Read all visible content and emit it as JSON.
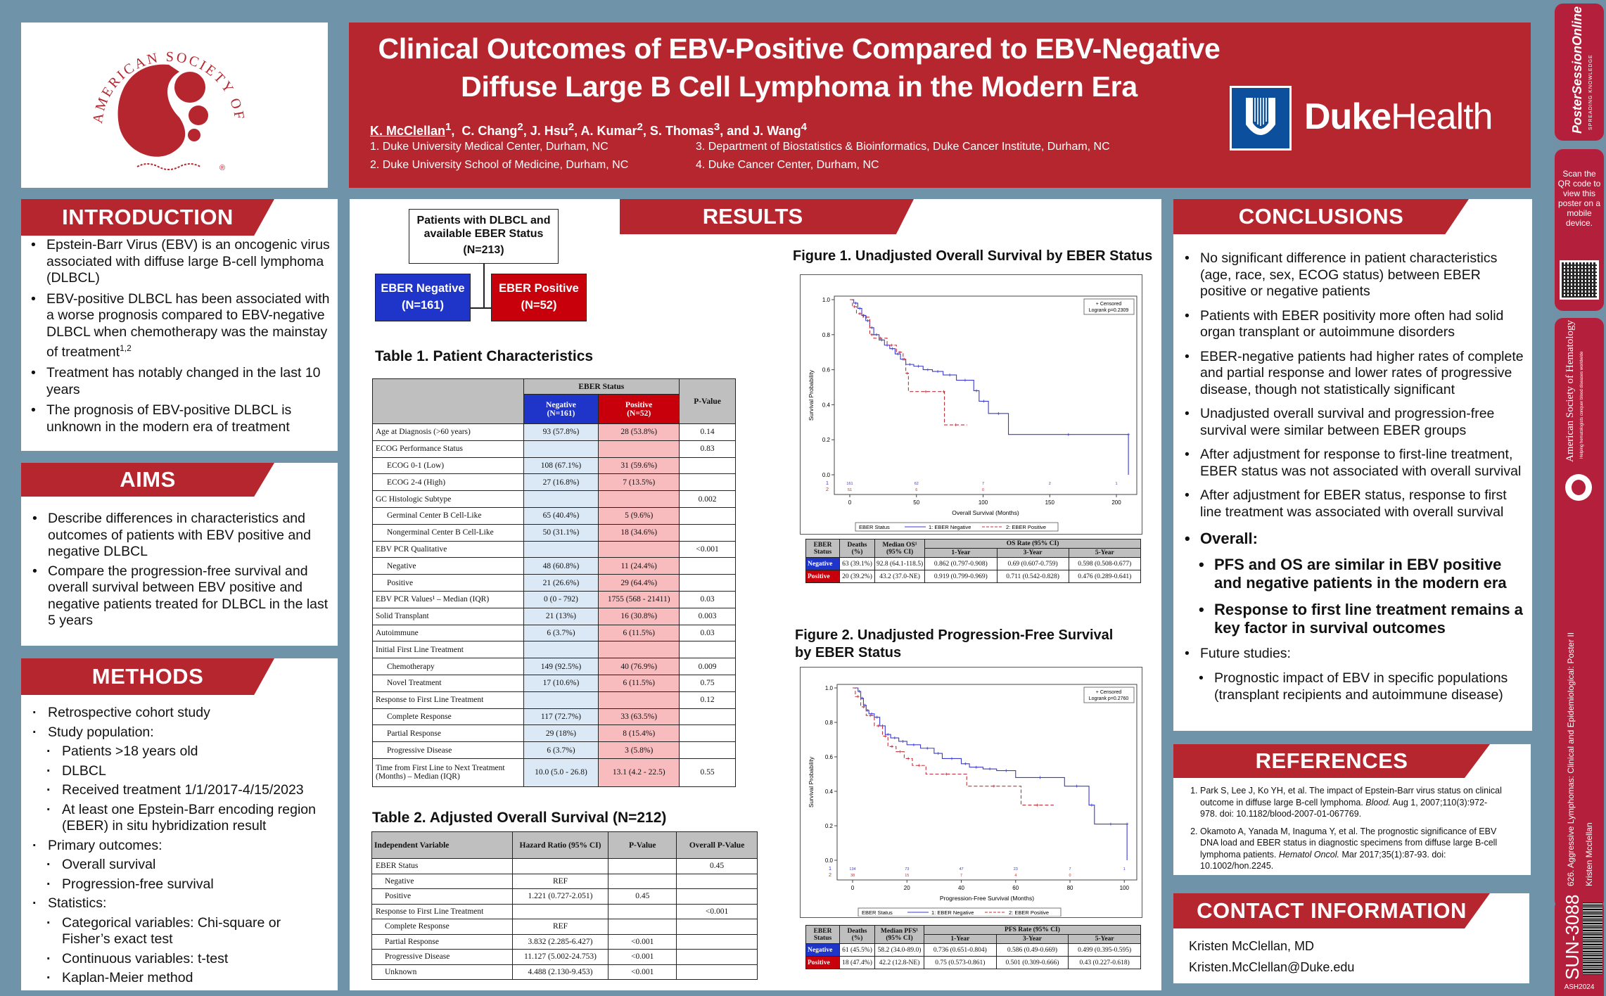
{
  "header": {
    "title_line1": "Clinical Outcomes of EBV-Positive Compared to EBV-Negative",
    "title_line2": "Diffuse Large B Cell Lymphoma in the Modern Era",
    "presenter": "K. McClellan",
    "presenter_sup": "1",
    "coauthors": [
      {
        "name": "C. Chang",
        "sup": "2"
      },
      {
        "name": "J. Hsu",
        "sup": "2"
      },
      {
        "name": "A. Kumar",
        "sup": "2"
      },
      {
        "name": "S. Thomas",
        "sup": "3"
      },
      {
        "name": "J. Wang",
        "sup": "4"
      }
    ],
    "and_word": "and",
    "affiliations": [
      "1. Duke University Medical Center, Durham, NC",
      "2. Duke University School of Medicine, Durham, NC",
      "3. Department of Biostatistics & Bioinformatics, Duke Cancer Institute, Durham, NC",
      "4. Duke Cancer Center, Durham, NC"
    ],
    "duke_logo_bold": "Duke",
    "duke_logo_light": "Health",
    "ash_logo_text": "AMERICAN SOCIETY OF HEMATOLOGY",
    "ash_logo_mark": "®"
  },
  "introduction": {
    "heading": "INTRODUCTION",
    "bullets": [
      "Epstein-Barr Virus (EBV) is an oncogenic virus associated with diffuse large B-cell lymphoma (DLBCL)",
      "EBV-positive DLBCL has been associated with a worse prognosis compared to EBV-negative DLBCL when chemotherapy was the mainstay of treatment",
      "Treatment has notably changed in the last 10 years",
      "The prognosis of EBV-positive DLBCL is unknown in the modern era of treatment"
    ],
    "bullet2_sup": "1,2"
  },
  "aims": {
    "heading": "AIMS",
    "bullets": [
      "Describe differences in characteristics and outcomes of patients with EBV positive and negative DLBCL",
      "Compare the progression-free survival and overall survival between EBV positive and negative patients treated for DLBCL in the last 5 years"
    ]
  },
  "methods": {
    "heading": "METHODS",
    "items": [
      {
        "text": "Retrospective cohort study",
        "level": 1
      },
      {
        "text": "Study population:",
        "level": 1
      },
      {
        "text": "Patients >18 years old",
        "level": 2
      },
      {
        "text": "DLBCL",
        "level": 2
      },
      {
        "text": "Received treatment 1/1/2017-4/15/2023",
        "level": 2
      },
      {
        "text": "At least one Epstein-Barr encoding region (EBER) in situ hybridization result",
        "level": 2
      },
      {
        "text": "Primary outcomes:",
        "level": 1
      },
      {
        "text": "Overall survival",
        "level": 2
      },
      {
        "text": "Progression-free survival",
        "level": 2
      },
      {
        "text": "Statistics:",
        "level": 1
      },
      {
        "text": "Categorical variables: Chi-square or Fisher’s exact test",
        "level": 2
      },
      {
        "text": "Continuous variables: t-test",
        "level": 2
      },
      {
        "text": "Kaplan-Meier method",
        "level": 2
      }
    ]
  },
  "results": {
    "heading": "RESULTS",
    "flow": {
      "top_line1": "Patients with DLBCL and",
      "top_line2": "available EBER Status",
      "top_n": "(N=213)",
      "neg_label": "EBER Negative",
      "neg_n": "(N=161)",
      "pos_label": "EBER Positive",
      "pos_n": "(N=52)"
    },
    "table1": {
      "title": "Table 1. Patient Characteristics",
      "group_header": "EBER Status",
      "neg_header": "Negative",
      "neg_n": "(N=161)",
      "pos_header": "Positive",
      "pos_n": "(N=52)",
      "pval_header": "P-Value",
      "rows": [
        {
          "label": "Age at Diagnosis (>60 years)",
          "neg": "93 (57.8%)",
          "pos": "28 (53.8%)",
          "p": "0.14",
          "indent": false
        },
        {
          "label": "ECOG Performance Status",
          "neg": "",
          "pos": "",
          "p": "0.83",
          "indent": false
        },
        {
          "label": "ECOG 0-1 (Low)",
          "neg": "108 (67.1%)",
          "pos": "31 (59.6%)",
          "p": "",
          "indent": true
        },
        {
          "label": "ECOG 2-4 (High)",
          "neg": "27 (16.8%)",
          "pos": "7 (13.5%)",
          "p": "",
          "indent": true
        },
        {
          "label": "GC Histologic Subtype",
          "neg": "",
          "pos": "",
          "p": "0.002",
          "indent": false
        },
        {
          "label": "Germinal Center B Cell-Like",
          "neg": "65 (40.4%)",
          "pos": "5 (9.6%)",
          "p": "",
          "indent": true
        },
        {
          "label": "Nongerminal Center B Cell-Like",
          "neg": "50 (31.1%)",
          "pos": "18 (34.6%)",
          "p": "",
          "indent": true
        },
        {
          "label": "EBV PCR Qualitative",
          "neg": "",
          "pos": "",
          "p": "<0.001",
          "indent": false
        },
        {
          "label": "Negative",
          "neg": "48 (60.8%)",
          "pos": "11 (24.4%)",
          "p": "",
          "indent": true
        },
        {
          "label": "Positive",
          "neg": "21 (26.6%)",
          "pos": "29 (64.4%)",
          "p": "",
          "indent": true
        },
        {
          "label": "EBV PCR Values¹ – Median (IQR)",
          "neg": "0 (0 - 792)",
          "pos": "1755 (568 - 21411)",
          "p": "0.03",
          "indent": false
        },
        {
          "label": "Solid Transplant",
          "neg": "21 (13%)",
          "pos": "16 (30.8%)",
          "p": "0.003",
          "indent": false
        },
        {
          "label": "Autoimmune",
          "neg": "6 (3.7%)",
          "pos": "6 (11.5%)",
          "p": "0.03",
          "indent": false
        },
        {
          "label": "Initial First Line Treatment",
          "neg": "",
          "pos": "",
          "p": "",
          "indent": false
        },
        {
          "label": "Chemotherapy",
          "neg": "149 (92.5%)",
          "pos": "40 (76.9%)",
          "p": "0.009",
          "indent": true
        },
        {
          "label": "Novel Treatment",
          "neg": "17 (10.6%)",
          "pos": "6 (11.5%)",
          "p": "0.75",
          "indent": true
        },
        {
          "label": "Response to First Line Treatment",
          "neg": "",
          "pos": "",
          "p": "0.12",
          "indent": false
        },
        {
          "label": "Complete Response",
          "neg": "117 (72.7%)",
          "pos": "33 (63.5%)",
          "p": "",
          "indent": true
        },
        {
          "label": "Partial Response",
          "neg": "29 (18%)",
          "pos": "8 (15.4%)",
          "p": "",
          "indent": true
        },
        {
          "label": "Progressive Disease",
          "neg": "6 (3.7%)",
          "pos": "3 (5.8%)",
          "p": "",
          "indent": true
        },
        {
          "label": "Time from First Line to Next Treatment (Months) – Median (IQR)",
          "neg": "10.0 (5.0 - 26.8)",
          "pos": "13.1 (4.2 - 22.5)",
          "p": "0.55",
          "indent": false
        }
      ]
    },
    "table2": {
      "title": "Table 2. Adjusted Overall Survival (N=212)",
      "headers": [
        "Independent Variable",
        "Hazard Ratio (95% CI)",
        "P-Value",
        "Overall P-Value"
      ],
      "rows": [
        {
          "label": "EBER Status",
          "hr": "",
          "p": "",
          "op": "0.45",
          "indent": false
        },
        {
          "label": "Negative",
          "hr": "REF",
          "p": "",
          "op": "",
          "indent": true
        },
        {
          "label": "Positive",
          "hr": "1.221 (0.727-2.051)",
          "p": "0.45",
          "op": "",
          "indent": true
        },
        {
          "label": "Response to First Line Treatment",
          "hr": "",
          "p": "",
          "op": "<0.001",
          "indent": false
        },
        {
          "label": "Complete Response",
          "hr": "REF",
          "p": "",
          "op": "",
          "indent": true
        },
        {
          "label": "Partial Response",
          "hr": "3.832 (2.285-6.427)",
          "p": "<0.001",
          "op": "",
          "indent": true
        },
        {
          "label": "Progressive Disease",
          "hr": "11.127 (5.002-24.753)",
          "p": "<0.001",
          "op": "",
          "indent": true
        },
        {
          "label": "Unknown",
          "hr": "4.488 (2.130-9.453)",
          "p": "<0.001",
          "op": "",
          "indent": true
        }
      ]
    },
    "figure1_table": {
      "headers": {
        "status": "EBER Status",
        "deaths": "Deaths (%)",
        "median": "Median OS¹ (95% CI)",
        "rate": "OS Rate (95% CI)",
        "y1": "1-Year",
        "y3": "3-Year",
        "y5": "5-Year"
      },
      "rows": [
        {
          "status": "Negative",
          "deaths": "63 (39.1%)",
          "median": "92.8 (64.1-118.5)",
          "y1": "0.862 (0.797-0.908)",
          "y3": "0.69 (0.607-0.759)",
          "y5": "0.598 (0.508-0.677)"
        },
        {
          "status": "Positive",
          "deaths": "20 (39.2%)",
          "median": "43.2 (37.0-NE)",
          "y1": "0.919 (0.799-0.969)",
          "y3": "0.711 (0.542-0.828)",
          "y5": "0.476 (0.289-0.641)"
        }
      ]
    },
    "figure2_table": {
      "headers": {
        "status": "EBER Status",
        "deaths": "Deaths (%)",
        "median": "Median PFS¹ (95% CI)",
        "rate": "PFS Rate (95% CI)",
        "y1": "1-Year",
        "y3": "3-Year",
        "y5": "5-Year"
      },
      "rows": [
        {
          "status": "Negative",
          "deaths": "61 (45.5%)",
          "median": "58.2 (34.0-89.0)",
          "y1": "0.736 (0.651-0.804)",
          "y3": "0.586 (0.49-0.669)",
          "y5": "0.499 (0.395-0.595)"
        },
        {
          "status": "Positive",
          "deaths": "18 (47.4%)",
          "median": "42.2 (12.8-NE)",
          "y1": "0.75 (0.573-0.861)",
          "y3": "0.501 (0.309-0.666)",
          "y5": "0.43 (0.227-0.618)"
        }
      ]
    }
  },
  "chart_data": [
    {
      "type": "line",
      "title": "Figure 1. Unadjusted Overall Survival by EBER Status",
      "xlabel": "Overall Survival (Months)",
      "ylabel": "Survival Probability",
      "xlim": [
        0,
        210
      ],
      "ylim": [
        0,
        1.0
      ],
      "xticks": [
        0,
        50,
        100,
        150,
        200
      ],
      "yticks": [
        0.0,
        0.2,
        0.4,
        0.6,
        0.8,
        1.0
      ],
      "legend_title": "EBER Status",
      "legend_position": "bottom",
      "annotation": [
        "+ Censored",
        "Logrank p=0.2309"
      ],
      "annotation_position": "top-right",
      "at_risk_times": [
        0,
        50,
        100,
        150,
        200
      ],
      "series": [
        {
          "name": "1: EBER Negative",
          "color": "#3a3acf",
          "style": "solid",
          "at_risk": [
            "161",
            "62",
            "7",
            "2",
            "1"
          ],
          "x": [
            0,
            3,
            6,
            9,
            12,
            15,
            18,
            22,
            26,
            30,
            34,
            38,
            42,
            48,
            55,
            62,
            70,
            80,
            93,
            97,
            104,
            119,
            209,
            209
          ],
          "y": [
            1.0,
            0.98,
            0.95,
            0.91,
            0.88,
            0.84,
            0.8,
            0.77,
            0.74,
            0.72,
            0.69,
            0.66,
            0.63,
            0.62,
            0.6,
            0.59,
            0.57,
            0.54,
            0.48,
            0.42,
            0.35,
            0.23,
            0.23,
            0.0
          ]
        },
        {
          "name": "2: EBER Positive",
          "color": "#c0303a",
          "style": "dashed",
          "at_risk": [
            "51",
            "6",
            "0"
          ],
          "x": [
            0,
            2,
            5,
            10,
            15,
            18,
            28,
            35,
            40,
            42,
            44,
            70,
            71,
            88
          ],
          "y": [
            1.0,
            0.96,
            0.92,
            0.9,
            0.8,
            0.78,
            0.74,
            0.7,
            0.66,
            0.58,
            0.475,
            0.475,
            0.285,
            0.285
          ]
        }
      ]
    },
    {
      "type": "line",
      "title": "Figure 2. Unadjusted Progression-Free Survival by EBER Status",
      "xlabel": "Progression-Free Survival (Months)",
      "ylabel": "Survival Probability",
      "xlim": [
        0,
        102
      ],
      "ylim": [
        0,
        1.0
      ],
      "xticks": [
        0,
        20,
        40,
        60,
        80,
        100
      ],
      "yticks": [
        0.0,
        0.2,
        0.4,
        0.6,
        0.8,
        1.0
      ],
      "legend_title": "EBER Status",
      "legend_position": "bottom",
      "annotation": [
        "+ Censored",
        "Logrank p=0.2760"
      ],
      "annotation_position": "top-right",
      "at_risk_times": [
        0,
        20,
        40,
        60,
        80,
        100
      ],
      "series": [
        {
          "name": "1: EBER Negative",
          "color": "#3a3acf",
          "style": "solid",
          "at_risk": [
            "134",
            "73",
            "47",
            "23",
            "7",
            "1"
          ],
          "x": [
            0,
            2,
            3,
            4,
            5,
            6,
            8,
            10,
            12,
            14,
            17,
            20,
            25,
            30,
            33,
            40,
            43,
            48,
            53,
            60,
            78,
            87,
            89,
            101,
            101
          ],
          "y": [
            1.0,
            0.98,
            0.94,
            0.9,
            0.87,
            0.85,
            0.83,
            0.78,
            0.73,
            0.71,
            0.69,
            0.67,
            0.65,
            0.62,
            0.59,
            0.56,
            0.54,
            0.53,
            0.52,
            0.48,
            0.43,
            0.32,
            0.21,
            0.21,
            0.0
          ]
        },
        {
          "name": "2: EBER Positive",
          "color": "#c0303a",
          "style": "dashed",
          "at_risk": [
            "38",
            "15",
            "7",
            "4",
            "0"
          ],
          "x": [
            0,
            1,
            3,
            5,
            8,
            11,
            13,
            16,
            19,
            22,
            27,
            42,
            62,
            74
          ],
          "y": [
            1.0,
            0.95,
            0.89,
            0.84,
            0.78,
            0.72,
            0.66,
            0.63,
            0.59,
            0.55,
            0.5,
            0.43,
            0.32,
            0.32
          ]
        }
      ]
    }
  ],
  "conclusions": {
    "heading": "CONCLUSIONS",
    "bullets": [
      "No significant difference in patient characteristics (age, race, sex, ECOG status) between EBER positive or negative patients",
      "Patients with EBER positivity more often had solid organ transplant or autoimmune disorders",
      "EBER-negative patients had higher rates of complete and partial response and lower rates of progressive disease, though not statistically significant",
      "Unadjusted overall survival and progression-free survival were similar between EBER groups",
      "After adjustment for response to first-line treatment, EBER status was not associated with overall survival",
      "After adjustment for EBER status, response to first line treatment was associated with overall survival"
    ],
    "overall_label": "Overall:",
    "overall_bullets": [
      "PFS and OS are similar in EBV positive and negative patients in the modern era",
      "Response to first line treatment remains a key factor in survival outcomes"
    ],
    "future_label": "Future studies:",
    "future_bullets": [
      "Prognostic impact of EBV in specific populations (transplant recipients and autoimmune disease)"
    ]
  },
  "references": {
    "heading": "REFERENCES",
    "items": [
      {
        "pre": "Park S, Lee J, Ko YH, et al. The impact of Epstein-Barr virus status on clinical outcome in diffuse large B-cell lymphoma. ",
        "journal": "Blood.",
        "post": " Aug 1, 2007;110(3):972-978. doi: 10.1182/blood-2007-01-067769."
      },
      {
        "pre": "Okamoto A, Yanada M, Inaguma Y, et al. The prognostic significance of EBV DNA load and EBER status in diagnostic specimens from diffuse large B-cell lymphoma patients. ",
        "journal": "Hematol Oncol.",
        "post": " Mar 2017;35(1):87-93. doi: 10.1002/hon.2245."
      }
    ]
  },
  "contact": {
    "heading": "CONTACT INFORMATION",
    "name": "Kristen McClellan, MD",
    "email": "Kristen.McClellan@Duke.edu"
  },
  "sidebar": {
    "pso_logo": "PosterSessionOnline",
    "pso_domain": ".com",
    "pso_tagline": "SPREADING KNOWLEDGE",
    "qr_text": "Scan the QR code to view this poster on a mobile device.",
    "ash_name": "American Society of Hematology",
    "ash_tagline": "Helping hematologists conquer blood diseases worldwide",
    "session": "626. Aggressive Lymphomas: Clinical and Epidemiological: Poster II",
    "presenter": "Kristen Mcclellan",
    "poster_id": "SUN-3088",
    "meeting": "ASH2024"
  }
}
